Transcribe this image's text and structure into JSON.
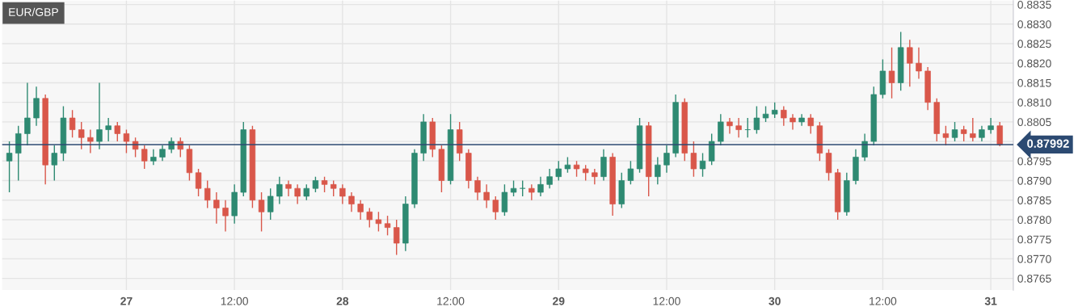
{
  "chart_data": {
    "type": "candlestick",
    "title": "EUR/GBP",
    "colors": [
      "#2e8a72",
      "#2e8a72",
      "#2e8a72",
      "#2e8a72",
      "#d9574a",
      "#2e8a72",
      "#2e8a72",
      "#d9574a",
      "#d9574a",
      "#d9574a",
      "#2e8a72",
      "#2e8a72",
      "#d9574a",
      "#d9574a",
      "#d9574a",
      "#d9574a",
      "#2e8a72",
      "#2e8a72",
      "#2e8a72",
      "#d9574a",
      "#d9574a",
      "#d9574a",
      "#d9574a",
      "#d9574a",
      "#d9574a",
      "#2e8a72",
      "#2e8a72",
      "#d9574a",
      "#d9574a",
      "#2e8a72",
      "#2e8a72",
      "#d9574a",
      "#d9574a",
      "#2e8a72",
      "#2e8a72",
      "#d9574a",
      "#d9574a",
      "#d9574a",
      "#d9574a",
      "#d9574a",
      "#d9574a",
      "#d9574a",
      "#d9574a",
      "#d9574a",
      "#2e8a72",
      "#2e8a72",
      "#2e8a72",
      "#d9574a",
      "#d9574a",
      "#2e8a72",
      "#d9574a",
      "#d9574a",
      "#d9574a",
      "#d9574a",
      "#d9574a",
      "#2e8a72",
      "#2e8a72",
      "#2e8a72",
      "#d9574a",
      "#2e8a72",
      "#2e8a72",
      "#2e8a72",
      "#2e8a72",
      "#d9574a",
      "#d9574a",
      "#d9574a",
      "#2e8a72",
      "#d9574a",
      "#2e8a72",
      "#2e8a72",
      "#2e8a72",
      "#d9574a",
      "#2e8a72",
      "#2e8a72",
      "#2e8a72",
      "#d9574a",
      "#d9574a",
      "#2e8a72",
      "#2e8a72",
      "#2e8a72",
      "#d9574a",
      "#d9574a",
      "#2e8a72",
      "#2e8a72",
      "#2e8a72",
      "#2e8a72",
      "#d9574a",
      "#d9574a",
      "#2e8a72",
      "#d9574a",
      "#d9574a",
      "#d9574a",
      "#d9574a",
      "#2e8a72",
      "#2e8a72",
      "#2e8a72",
      "#2e8a72",
      "#2e8a72",
      "#d9574a",
      "#2e8a72",
      "#d9574a",
      "#d9574a",
      "#d9574a",
      "#d9574a",
      "#d9574a",
      "#2e8a72",
      "#d9574a",
      "#d9574a",
      "#2e8a72",
      "#2e8a72",
      "#d9574a"
    ],
    "categories": [
      null,
      null,
      null,
      null,
      null,
      null,
      null,
      null,
      null,
      null,
      null,
      null,
      null,
      "27",
      null,
      null,
      null,
      null,
      null,
      null,
      null,
      null,
      null,
      null,
      null,
      "12:00",
      null,
      null,
      null,
      null,
      null,
      null,
      null,
      null,
      null,
      null,
      null,
      "28",
      null,
      null,
      null,
      null,
      null,
      null,
      null,
      null,
      null,
      null,
      null,
      "12:00",
      null,
      null,
      null,
      null,
      null,
      null,
      null,
      null,
      null,
      null,
      null,
      "29",
      null,
      null,
      null,
      null,
      null,
      null,
      null,
      null,
      null,
      null,
      null,
      "12:00",
      null,
      null,
      null,
      null,
      null,
      null,
      null,
      null,
      null,
      null,
      null,
      "30",
      null,
      null,
      null,
      null,
      null,
      null,
      null,
      null,
      null,
      null,
      null,
      "12:00",
      null,
      null,
      null,
      null,
      null,
      null,
      null,
      null,
      null,
      null,
      null,
      "31",
      null
    ],
    "ohlc": [
      [
        0.8795,
        0.88,
        0.8787,
        0.8797
      ],
      [
        0.8797,
        0.8804,
        0.879,
        0.8802
      ],
      [
        0.8802,
        0.8815,
        0.8799,
        0.8806
      ],
      [
        0.8806,
        0.8814,
        0.8804,
        0.8811
      ],
      [
        0.8811,
        0.8812,
        0.8789,
        0.8794
      ],
      [
        0.8794,
        0.8799,
        0.879,
        0.8797
      ],
      [
        0.8797,
        0.8809,
        0.8795,
        0.8806
      ],
      [
        0.8806,
        0.8808,
        0.8801,
        0.8803
      ],
      [
        0.8803,
        0.8805,
        0.8798,
        0.8801
      ],
      [
        0.8801,
        0.8803,
        0.8797,
        0.88
      ],
      [
        0.88,
        0.8815,
        0.8798,
        0.8803
      ],
      [
        0.8803,
        0.8806,
        0.88,
        0.8804
      ],
      [
        0.8804,
        0.8805,
        0.88,
        0.8802
      ],
      [
        0.8802,
        0.8803,
        0.8797,
        0.88
      ],
      [
        0.88,
        0.8801,
        0.8796,
        0.8798
      ],
      [
        0.8798,
        0.8799,
        0.8793,
        0.8795
      ],
      [
        0.8795,
        0.8798,
        0.8794,
        0.8796
      ],
      [
        0.8796,
        0.8799,
        0.8795,
        0.8798
      ],
      [
        0.8798,
        0.8801,
        0.8797,
        0.88
      ],
      [
        0.88,
        0.8801,
        0.8796,
        0.8798
      ],
      [
        0.8798,
        0.8799,
        0.879,
        0.8792
      ],
      [
        0.8792,
        0.8793,
        0.8786,
        0.8788
      ],
      [
        0.8788,
        0.879,
        0.8783,
        0.8785
      ],
      [
        0.8785,
        0.8787,
        0.8779,
        0.8783
      ],
      [
        0.8783,
        0.8785,
        0.8777,
        0.8781
      ],
      [
        0.8781,
        0.8789,
        0.8779,
        0.8787
      ],
      [
        0.8787,
        0.8805,
        0.8786,
        0.8803
      ],
      [
        0.8803,
        0.8804,
        0.8783,
        0.8785
      ],
      [
        0.8785,
        0.8787,
        0.8777,
        0.8782
      ],
      [
        0.8782,
        0.8788,
        0.878,
        0.8786
      ],
      [
        0.8786,
        0.8791,
        0.8784,
        0.8789
      ],
      [
        0.8789,
        0.879,
        0.8786,
        0.8788
      ],
      [
        0.8788,
        0.8789,
        0.8784,
        0.8786
      ],
      [
        0.8786,
        0.8789,
        0.8785,
        0.8788
      ],
      [
        0.8788,
        0.8791,
        0.8787,
        0.879
      ],
      [
        0.879,
        0.8791,
        0.8787,
        0.8789
      ],
      [
        0.8789,
        0.879,
        0.8786,
        0.8788
      ],
      [
        0.8788,
        0.8789,
        0.8784,
        0.8786
      ],
      [
        0.8786,
        0.8787,
        0.8782,
        0.8784
      ],
      [
        0.8784,
        0.8785,
        0.878,
        0.8782
      ],
      [
        0.8782,
        0.8783,
        0.8778,
        0.878
      ],
      [
        0.878,
        0.8782,
        0.8777,
        0.8779
      ],
      [
        0.8779,
        0.8781,
        0.8776,
        0.8778
      ],
      [
        0.8778,
        0.878,
        0.8771,
        0.8774
      ],
      [
        0.8774,
        0.8786,
        0.8772,
        0.8784
      ],
      [
        0.8784,
        0.8798,
        0.8783,
        0.8797
      ],
      [
        0.8797,
        0.8807,
        0.8795,
        0.8805
      ],
      [
        0.8805,
        0.8806,
        0.8796,
        0.8798
      ],
      [
        0.8798,
        0.8799,
        0.8787,
        0.879
      ],
      [
        0.879,
        0.8807,
        0.8789,
        0.8803
      ],
      [
        0.8803,
        0.8805,
        0.8795,
        0.8797
      ],
      [
        0.8797,
        0.8798,
        0.8788,
        0.879
      ],
      [
        0.879,
        0.8791,
        0.8785,
        0.8787
      ],
      [
        0.8787,
        0.8789,
        0.8783,
        0.8785
      ],
      [
        0.8785,
        0.8786,
        0.878,
        0.8782
      ],
      [
        0.8782,
        0.8789,
        0.8781,
        0.8787
      ],
      [
        0.8787,
        0.879,
        0.8786,
        0.8788
      ],
      [
        0.8788,
        0.879,
        0.8786,
        0.8788
      ],
      [
        0.8788,
        0.8789,
        0.8785,
        0.8787
      ],
      [
        0.8787,
        0.8791,
        0.8786,
        0.8789
      ],
      [
        0.8789,
        0.8793,
        0.8788,
        0.8791
      ],
      [
        0.8791,
        0.8795,
        0.879,
        0.8793
      ],
      [
        0.8793,
        0.8796,
        0.8792,
        0.8794
      ],
      [
        0.8794,
        0.8795,
        0.8791,
        0.8793
      ],
      [
        0.8793,
        0.8794,
        0.879,
        0.8792
      ],
      [
        0.8792,
        0.8793,
        0.8789,
        0.8791
      ],
      [
        0.8791,
        0.8798,
        0.879,
        0.8796
      ],
      [
        0.8796,
        0.8797,
        0.8781,
        0.8784
      ],
      [
        0.8784,
        0.8792,
        0.8783,
        0.879
      ],
      [
        0.879,
        0.8795,
        0.8789,
        0.8793
      ],
      [
        0.8793,
        0.8806,
        0.8792,
        0.8804
      ],
      [
        0.8804,
        0.8805,
        0.8786,
        0.8791
      ],
      [
        0.8791,
        0.8796,
        0.8789,
        0.8794
      ],
      [
        0.8794,
        0.8799,
        0.8792,
        0.8797
      ],
      [
        0.8797,
        0.8812,
        0.8796,
        0.881
      ],
      [
        0.881,
        0.8811,
        0.8795,
        0.8797
      ],
      [
        0.8797,
        0.88,
        0.8791,
        0.8793
      ],
      [
        0.8793,
        0.8797,
        0.8791,
        0.8795
      ],
      [
        0.8795,
        0.8802,
        0.8794,
        0.88
      ],
      [
        0.88,
        0.8807,
        0.8799,
        0.8805
      ],
      [
        0.8805,
        0.8806,
        0.8802,
        0.8804
      ],
      [
        0.8804,
        0.8806,
        0.8801,
        0.8803
      ],
      [
        0.8803,
        0.8806,
        0.8801,
        0.8803
      ],
      [
        0.8803,
        0.8809,
        0.8802,
        0.8806
      ],
      [
        0.8806,
        0.8809,
        0.8805,
        0.8807
      ],
      [
        0.8807,
        0.881,
        0.8806,
        0.8808
      ],
      [
        0.8808,
        0.8809,
        0.8804,
        0.8806
      ],
      [
        0.8806,
        0.8807,
        0.8803,
        0.8805
      ],
      [
        0.8805,
        0.8807,
        0.8804,
        0.8806
      ],
      [
        0.8806,
        0.8807,
        0.8802,
        0.8804
      ],
      [
        0.8804,
        0.8805,
        0.8795,
        0.8797
      ],
      [
        0.8797,
        0.8798,
        0.879,
        0.8792
      ],
      [
        0.8792,
        0.8793,
        0.878,
        0.8782
      ],
      [
        0.8782,
        0.8792,
        0.8781,
        0.879
      ],
      [
        0.879,
        0.8798,
        0.8789,
        0.8796
      ],
      [
        0.8796,
        0.8802,
        0.8795,
        0.88
      ],
      [
        0.88,
        0.8814,
        0.8799,
        0.8812
      ],
      [
        0.8812,
        0.8821,
        0.8811,
        0.8818
      ],
      [
        0.8818,
        0.8824,
        0.8811,
        0.8815
      ],
      [
        0.8815,
        0.8828,
        0.8813,
        0.8824
      ],
      [
        0.8824,
        0.8826,
        0.8814,
        0.882
      ],
      [
        0.882,
        0.8824,
        0.8816,
        0.8818
      ],
      [
        0.8818,
        0.8819,
        0.8808,
        0.881
      ],
      [
        0.881,
        0.8811,
        0.88,
        0.8802
      ],
      [
        0.8802,
        0.8804,
        0.8799,
        0.8801
      ],
      [
        0.8801,
        0.8805,
        0.88,
        0.8803
      ],
      [
        0.8803,
        0.8804,
        0.88,
        0.8802
      ],
      [
        0.8802,
        0.8806,
        0.88,
        0.8801
      ],
      [
        0.8801,
        0.8804,
        0.88,
        0.8803
      ],
      [
        0.8803,
        0.8806,
        0.8802,
        0.8804
      ],
      [
        0.8804,
        0.8805,
        0.87988,
        0.87992
      ]
    ],
    "ylim": [
      0.8762,
      0.8836
    ],
    "yticks": [
      0.8765,
      {
        "value": 0.877,
        "label": "0.8770"
      },
      0.8775,
      {
        "value": 0.878,
        "label": "0.8780"
      },
      0.8785,
      {
        "value": 0.879,
        "label": "0.8790"
      },
      0.8795,
      {
        "value": 0.88,
        "label": null
      },
      0.8805,
      {
        "value": 0.881,
        "label": "0.8810"
      },
      0.8815,
      {
        "value": 0.882,
        "label": "0.8820"
      },
      0.8825,
      {
        "value": 0.883,
        "label": "0.8830"
      },
      0.8835
    ],
    "ref_lines": [
      {
        "axis": "y",
        "value": 0.87992,
        "label": "0.87992",
        "color": "#2c4a72"
      }
    ],
    "grid": true
  }
}
